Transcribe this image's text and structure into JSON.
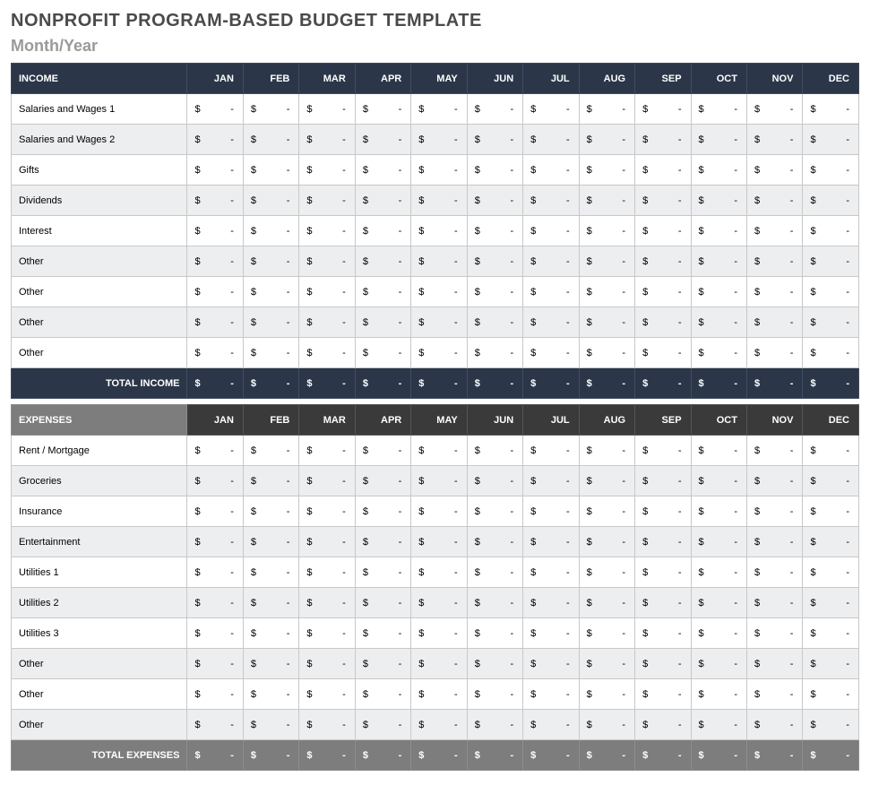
{
  "page": {
    "title": "NONPROFIT PROGRAM-BASED BUDGET TEMPLATE",
    "subtitle": "Month/Year"
  },
  "months": [
    "JAN",
    "FEB",
    "MAR",
    "APR",
    "MAY",
    "JUN",
    "JUL",
    "AUG",
    "SEP",
    "OCT",
    "NOV",
    "DEC"
  ],
  "currency_symbol": "$",
  "empty_value": "-",
  "income": {
    "header_label": "INCOME",
    "header_bg": "#2b3648",
    "header_fg": "#ffffff",
    "row_even_bg": "#edeef0",
    "row_odd_bg": "#ffffff",
    "total_label": "TOTAL INCOME",
    "total_bg": "#2b3648",
    "total_fg": "#ffffff",
    "rows": [
      {
        "label": "Salaries and Wages 1",
        "values": [
          "-",
          "-",
          "-",
          "-",
          "-",
          "-",
          "-",
          "-",
          "-",
          "-",
          "-",
          "-"
        ]
      },
      {
        "label": "Salaries and Wages 2",
        "values": [
          "-",
          "-",
          "-",
          "-",
          "-",
          "-",
          "-",
          "-",
          "-",
          "-",
          "-",
          "-"
        ]
      },
      {
        "label": "Gifts",
        "values": [
          "-",
          "-",
          "-",
          "-",
          "-",
          "-",
          "-",
          "-",
          "-",
          "-",
          "-",
          "-"
        ]
      },
      {
        "label": "Dividends",
        "values": [
          "-",
          "-",
          "-",
          "-",
          "-",
          "-",
          "-",
          "-",
          "-",
          "-",
          "-",
          "-"
        ]
      },
      {
        "label": "Interest",
        "values": [
          "-",
          "-",
          "-",
          "-",
          "-",
          "-",
          "-",
          "-",
          "-",
          "-",
          "-",
          "-"
        ]
      },
      {
        "label": "Other",
        "values": [
          "-",
          "-",
          "-",
          "-",
          "-",
          "-",
          "-",
          "-",
          "-",
          "-",
          "-",
          "-"
        ]
      },
      {
        "label": "Other",
        "values": [
          "-",
          "-",
          "-",
          "-",
          "-",
          "-",
          "-",
          "-",
          "-",
          "-",
          "-",
          "-"
        ]
      },
      {
        "label": "Other",
        "values": [
          "-",
          "-",
          "-",
          "-",
          "-",
          "-",
          "-",
          "-",
          "-",
          "-",
          "-",
          "-"
        ]
      },
      {
        "label": "Other",
        "values": [
          "-",
          "-",
          "-",
          "-",
          "-",
          "-",
          "-",
          "-",
          "-",
          "-",
          "-",
          "-"
        ]
      }
    ],
    "total_values": [
      "-",
      "-",
      "-",
      "-",
      "-",
      "-",
      "-",
      "-",
      "-",
      "-",
      "-",
      "-"
    ]
  },
  "expenses": {
    "header_label": "EXPENSES",
    "header_bg": "#3a3a3a",
    "header_label_bg": "#7d7d7d",
    "header_fg": "#ffffff",
    "row_even_bg": "#edeef0",
    "row_odd_bg": "#ffffff",
    "total_label": "TOTAL EXPENSES",
    "total_bg": "#7d7d7d",
    "total_fg": "#ffffff",
    "rows": [
      {
        "label": "Rent / Mortgage",
        "values": [
          "-",
          "-",
          "-",
          "-",
          "-",
          "-",
          "-",
          "-",
          "-",
          "-",
          "-",
          "-"
        ]
      },
      {
        "label": "Groceries",
        "values": [
          "-",
          "-",
          "-",
          "-",
          "-",
          "-",
          "-",
          "-",
          "-",
          "-",
          "-",
          "-"
        ]
      },
      {
        "label": "Insurance",
        "values": [
          "-",
          "-",
          "-",
          "-",
          "-",
          "-",
          "-",
          "-",
          "-",
          "-",
          "-",
          "-"
        ]
      },
      {
        "label": "Entertainment",
        "values": [
          "-",
          "-",
          "-",
          "-",
          "-",
          "-",
          "-",
          "-",
          "-",
          "-",
          "-",
          "-"
        ]
      },
      {
        "label": "Utilities 1",
        "values": [
          "-",
          "-",
          "-",
          "-",
          "-",
          "-",
          "-",
          "-",
          "-",
          "-",
          "-",
          "-"
        ]
      },
      {
        "label": "Utilities 2",
        "values": [
          "-",
          "-",
          "-",
          "-",
          "-",
          "-",
          "-",
          "-",
          "-",
          "-",
          "-",
          "-"
        ]
      },
      {
        "label": "Utilities 3",
        "values": [
          "-",
          "-",
          "-",
          "-",
          "-",
          "-",
          "-",
          "-",
          "-",
          "-",
          "-",
          "-"
        ]
      },
      {
        "label": "Other",
        "values": [
          "-",
          "-",
          "-",
          "-",
          "-",
          "-",
          "-",
          "-",
          "-",
          "-",
          "-",
          "-"
        ]
      },
      {
        "label": "Other",
        "values": [
          "-",
          "-",
          "-",
          "-",
          "-",
          "-",
          "-",
          "-",
          "-",
          "-",
          "-",
          "-"
        ]
      },
      {
        "label": "Other",
        "values": [
          "-",
          "-",
          "-",
          "-",
          "-",
          "-",
          "-",
          "-",
          "-",
          "-",
          "-",
          "-"
        ]
      }
    ],
    "total_values": [
      "-",
      "-",
      "-",
      "-",
      "-",
      "-",
      "-",
      "-",
      "-",
      "-",
      "-",
      "-"
    ]
  },
  "style": {
    "border_color": "#c8c8c8",
    "font_size_body": 11,
    "font_size_title": 20,
    "font_size_subtitle": 18
  }
}
